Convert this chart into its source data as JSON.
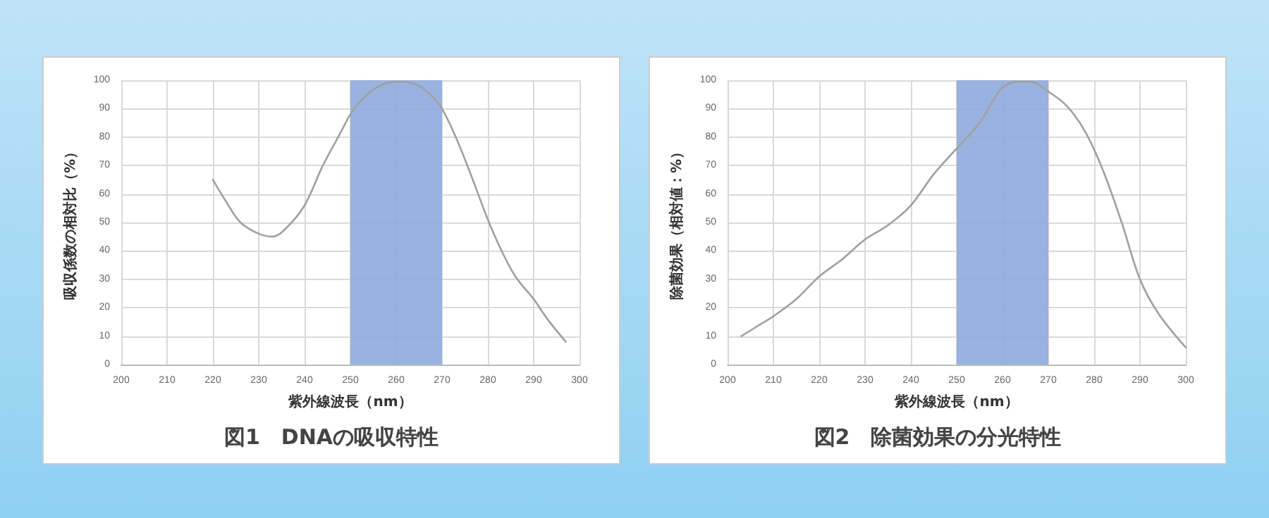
{
  "chart_data": [
    {
      "type": "line",
      "title": "図1　DNAの吸収特性",
      "xlabel": "紫外線波長（nm）",
      "ylabel": "吸収係数の相対比（%）",
      "x": [
        220,
        223,
        226,
        230,
        233,
        236,
        240,
        244,
        248,
        250,
        253,
        257,
        261,
        265,
        268,
        270,
        273,
        276,
        280,
        283,
        286,
        290,
        293,
        297
      ],
      "series": [
        {
          "color": "#a0a0a0",
          "values": [
            65,
            57,
            50,
            46,
            45,
            48,
            56,
            70,
            82,
            88,
            94,
            98.5,
            99.5,
            98,
            94,
            90,
            80,
            68,
            51,
            40,
            31,
            23,
            16,
            8
          ]
        }
      ],
      "xlim": [
        200,
        300
      ],
      "xticks": [
        200,
        210,
        220,
        230,
        240,
        250,
        260,
        270,
        280,
        290,
        300
      ],
      "ylim": [
        0,
        100
      ],
      "yticks": [
        0,
        10,
        20,
        30,
        40,
        50,
        60,
        70,
        80,
        90,
        100
      ],
      "bands": [
        {
          "axis": "x",
          "from": 250,
          "to": 270,
          "color": "#8faadc"
        }
      ],
      "grid": true,
      "marker": "none",
      "line_style": "solid"
    },
    {
      "type": "line",
      "title": "図2　除菌効果の分光特性",
      "xlabel": "紫外線波長（nm）",
      "ylabel": "除菌効果（相対値：%）",
      "x": [
        203,
        207,
        210,
        215,
        220,
        225,
        230,
        235,
        240,
        245,
        250,
        255,
        258,
        260,
        263,
        266,
        270,
        274,
        278,
        282,
        286,
        290,
        294,
        300
      ],
      "series": [
        {
          "color": "#a0a0a0",
          "values": [
            10,
            14,
            17,
            23,
            31,
            37,
            44,
            49,
            56,
            67,
            76,
            85,
            93,
            97.5,
            99.5,
            99.5,
            96,
            91,
            82,
            68,
            50,
            30,
            18,
            6
          ]
        }
      ],
      "xlim": [
        200,
        300
      ],
      "xticks": [
        200,
        210,
        220,
        230,
        240,
        250,
        260,
        270,
        280,
        290,
        300
      ],
      "ylim": [
        0,
        100
      ],
      "yticks": [
        0,
        10,
        20,
        30,
        40,
        50,
        60,
        70,
        80,
        90,
        100
      ],
      "bands": [
        {
          "axis": "x",
          "from": 250,
          "to": 270,
          "color": "#8faadc"
        }
      ],
      "grid": true,
      "marker": "none",
      "line_style": "solid"
    }
  ]
}
